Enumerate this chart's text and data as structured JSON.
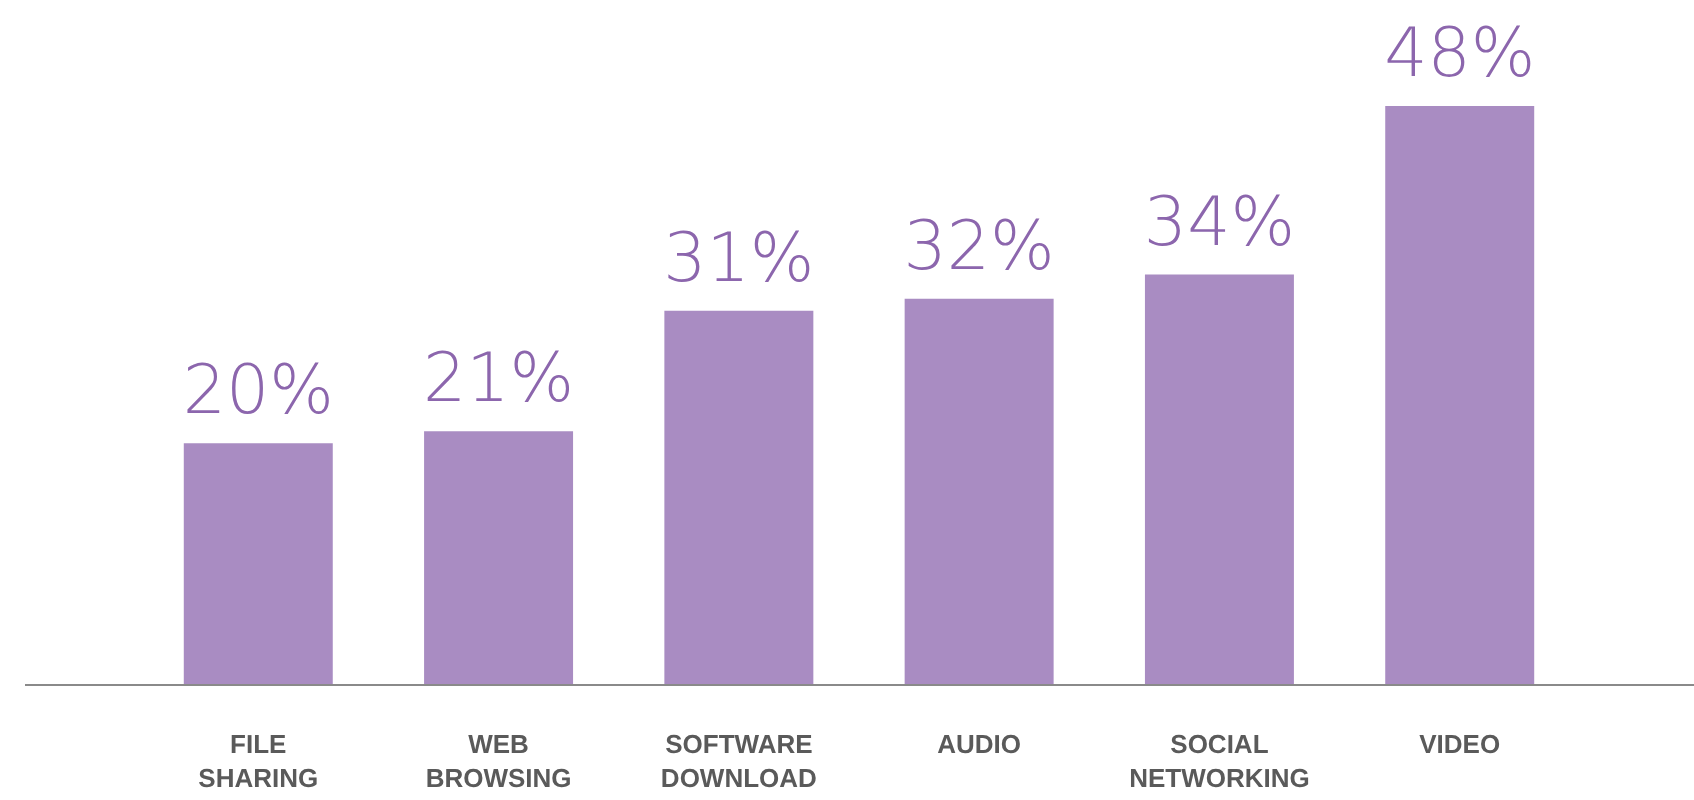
{
  "chart_data": {
    "type": "bar",
    "categories": [
      "FILE SHARING",
      "WEB BROWSING",
      "SOFTWARE DOWNLOAD",
      "AUDIO",
      "SOCIAL NETWORKING",
      "VIDEO"
    ],
    "values": [
      20,
      21,
      31,
      32,
      34,
      48
    ],
    "value_labels": [
      "20%",
      "21%",
      "31%",
      "32%",
      "34%",
      "48%"
    ],
    "color": "#8c66ad"
  }
}
